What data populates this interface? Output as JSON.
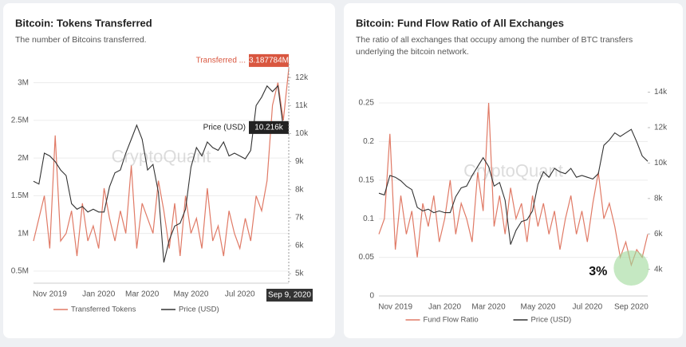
{
  "chart_data": [
    {
      "type": "line",
      "title": "Bitcoin: Tokens Transferred",
      "subtitle": [
        "The number of Bitcoins transferred."
      ],
      "watermark": "CryptoQuant",
      "categories": [
        null,
        null,
        null,
        "Nov 2019",
        null,
        null,
        null,
        null,
        null,
        null,
        null,
        null,
        "Jan 2020",
        null,
        null,
        null,
        null,
        null,
        null,
        null,
        "Mar 2020",
        null,
        null,
        null,
        null,
        null,
        null,
        null,
        null,
        "May 2020",
        null,
        null,
        null,
        null,
        null,
        null,
        null,
        null,
        "Jul 2020",
        null,
        null,
        null,
        null,
        null,
        null,
        null,
        null,
        null
      ],
      "series": [
        {
          "name": "Transferred Tokens",
          "color": "#e07a66",
          "axis": "y",
          "values": [
            900000,
            1200000,
            1500000,
            800000,
            2300000,
            900000,
            1000000,
            1300000,
            700000,
            1400000,
            900000,
            1100000,
            800000,
            1600000,
            1200000,
            900000,
            1300000,
            1000000,
            1900000,
            800000,
            1400000,
            1200000,
            1000000,
            1700000,
            1300000,
            800000,
            1400000,
            700000,
            1500000,
            1000000,
            1200000,
            800000,
            1600000,
            900000,
            1100000,
            700000,
            1300000,
            1000000,
            800000,
            1200000,
            900000,
            1500000,
            1300000,
            1700000,
            2700000,
            3000000,
            2500000,
            3187784
          ]
        },
        {
          "name": "Price (USD)",
          "color": "#333333",
          "axis": "y2",
          "values": [
            8300,
            8200,
            9300,
            9200,
            9000,
            8700,
            8500,
            7500,
            7300,
            7400,
            7200,
            7300,
            7200,
            7200,
            8100,
            8600,
            8700,
            9300,
            9800,
            10300,
            9800,
            8700,
            8900,
            7900,
            5400,
            6200,
            6700,
            6800,
            7300,
            8800,
            9500,
            9200,
            9700,
            9500,
            9400,
            9700,
            9200,
            9300,
            9200,
            9100,
            9400,
            11000,
            11300,
            11700,
            11500,
            11700,
            10200,
            10216
          ]
        }
      ],
      "ylim": [
        340000,
        3250000
      ],
      "yticks": [
        {
          "value": 500000,
          "label": "0.5M"
        },
        {
          "value": 1000000,
          "label": "1M"
        },
        {
          "value": 1500000,
          "label": "1.5M"
        },
        {
          "value": 2000000,
          "label": "2M"
        },
        {
          "value": 2500000,
          "label": "2.5M"
        },
        {
          "value": 3000000,
          "label": "3M"
        }
      ],
      "y2lim": [
        4660,
        12490
      ],
      "y2ticks": [
        {
          "value": 5000,
          "label": "5k"
        },
        {
          "value": 6000,
          "label": "6k"
        },
        {
          "value": 7000,
          "label": "7k"
        },
        {
          "value": 8000,
          "label": "8k"
        },
        {
          "value": 9000,
          "label": "9k"
        },
        {
          "value": 10000,
          "label": "10k"
        },
        {
          "value": 11000,
          "label": "11k"
        },
        {
          "value": 12000,
          "label": "12k"
        }
      ],
      "grid": true,
      "tooltips": [
        {
          "label": "Transferred ...",
          "value_label": "3.187784M",
          "series": 0,
          "color": "#d9563f"
        },
        {
          "label": "Price (USD)",
          "value_label": "10.216k",
          "series": 1,
          "color": "#222222"
        }
      ],
      "hover_date": "Sep 9, 2020"
    },
    {
      "type": "line",
      "title": "Bitcoin: Fund Flow Ratio of All Exchanges",
      "subtitle": [
        "The ratio of all exchanges that occupy among the number of BTC transfers",
        "underlying the bitcoin network."
      ],
      "watermark": "CryptoQuant",
      "categories": [
        null,
        null,
        null,
        "Nov 2019",
        null,
        null,
        null,
        null,
        null,
        null,
        null,
        null,
        "Jan 2020",
        null,
        null,
        null,
        null,
        null,
        null,
        null,
        "Mar 2020",
        null,
        null,
        null,
        null,
        null,
        null,
        null,
        null,
        "May 2020",
        null,
        null,
        null,
        null,
        null,
        null,
        null,
        null,
        "Jul 2020",
        null,
        null,
        null,
        null,
        null,
        null,
        null,
        "Sep 2020",
        null,
        null,
        null
      ],
      "series": [
        {
          "name": "Fund Flow Ratio",
          "color": "#e07a66",
          "axis": "y",
          "values": [
            0.08,
            0.1,
            0.21,
            0.06,
            0.13,
            0.08,
            0.11,
            0.05,
            0.12,
            0.09,
            0.13,
            0.07,
            0.1,
            0.15,
            0.08,
            0.12,
            0.1,
            0.07,
            0.16,
            0.11,
            0.25,
            0.09,
            0.13,
            0.08,
            0.14,
            0.1,
            0.12,
            0.07,
            0.13,
            0.09,
            0.12,
            0.08,
            0.11,
            0.06,
            0.1,
            0.13,
            0.08,
            0.11,
            0.07,
            0.12,
            0.16,
            0.1,
            0.12,
            0.09,
            0.05,
            0.07,
            0.04,
            0.06,
            0.05,
            0.08
          ]
        },
        {
          "name": "Price (USD)",
          "color": "#333333",
          "axis": "y2",
          "values": [
            8300,
            8200,
            9300,
            9200,
            9000,
            8700,
            8500,
            7500,
            7300,
            7400,
            7200,
            7300,
            7200,
            7200,
            8100,
            8600,
            8700,
            9300,
            9800,
            10300,
            9800,
            8700,
            8900,
            7900,
            5400,
            6200,
            6700,
            6800,
            7300,
            8800,
            9500,
            9200,
            9700,
            9500,
            9400,
            9700,
            9200,
            9300,
            9200,
            9100,
            9400,
            11000,
            11300,
            11700,
            11500,
            11700,
            11900,
            11200,
            10400,
            10100
          ]
        }
      ],
      "ylim": [
        0,
        0.28
      ],
      "yticks": [
        0,
        0.05,
        0.1,
        0.15,
        0.2,
        0.25
      ],
      "y2lim": [
        2500,
        14700
      ],
      "y2ticks": [
        {
          "value": 4000,
          "label": "4k"
        },
        {
          "value": 6000,
          "label": "6k"
        },
        {
          "value": 8000,
          "label": "8k"
        },
        {
          "value": 10000,
          "label": "10k"
        },
        {
          "value": 12000,
          "label": "12k"
        },
        {
          "value": 14000,
          "label": "14k"
        }
      ],
      "grid": true,
      "highlight": "3%"
    }
  ]
}
